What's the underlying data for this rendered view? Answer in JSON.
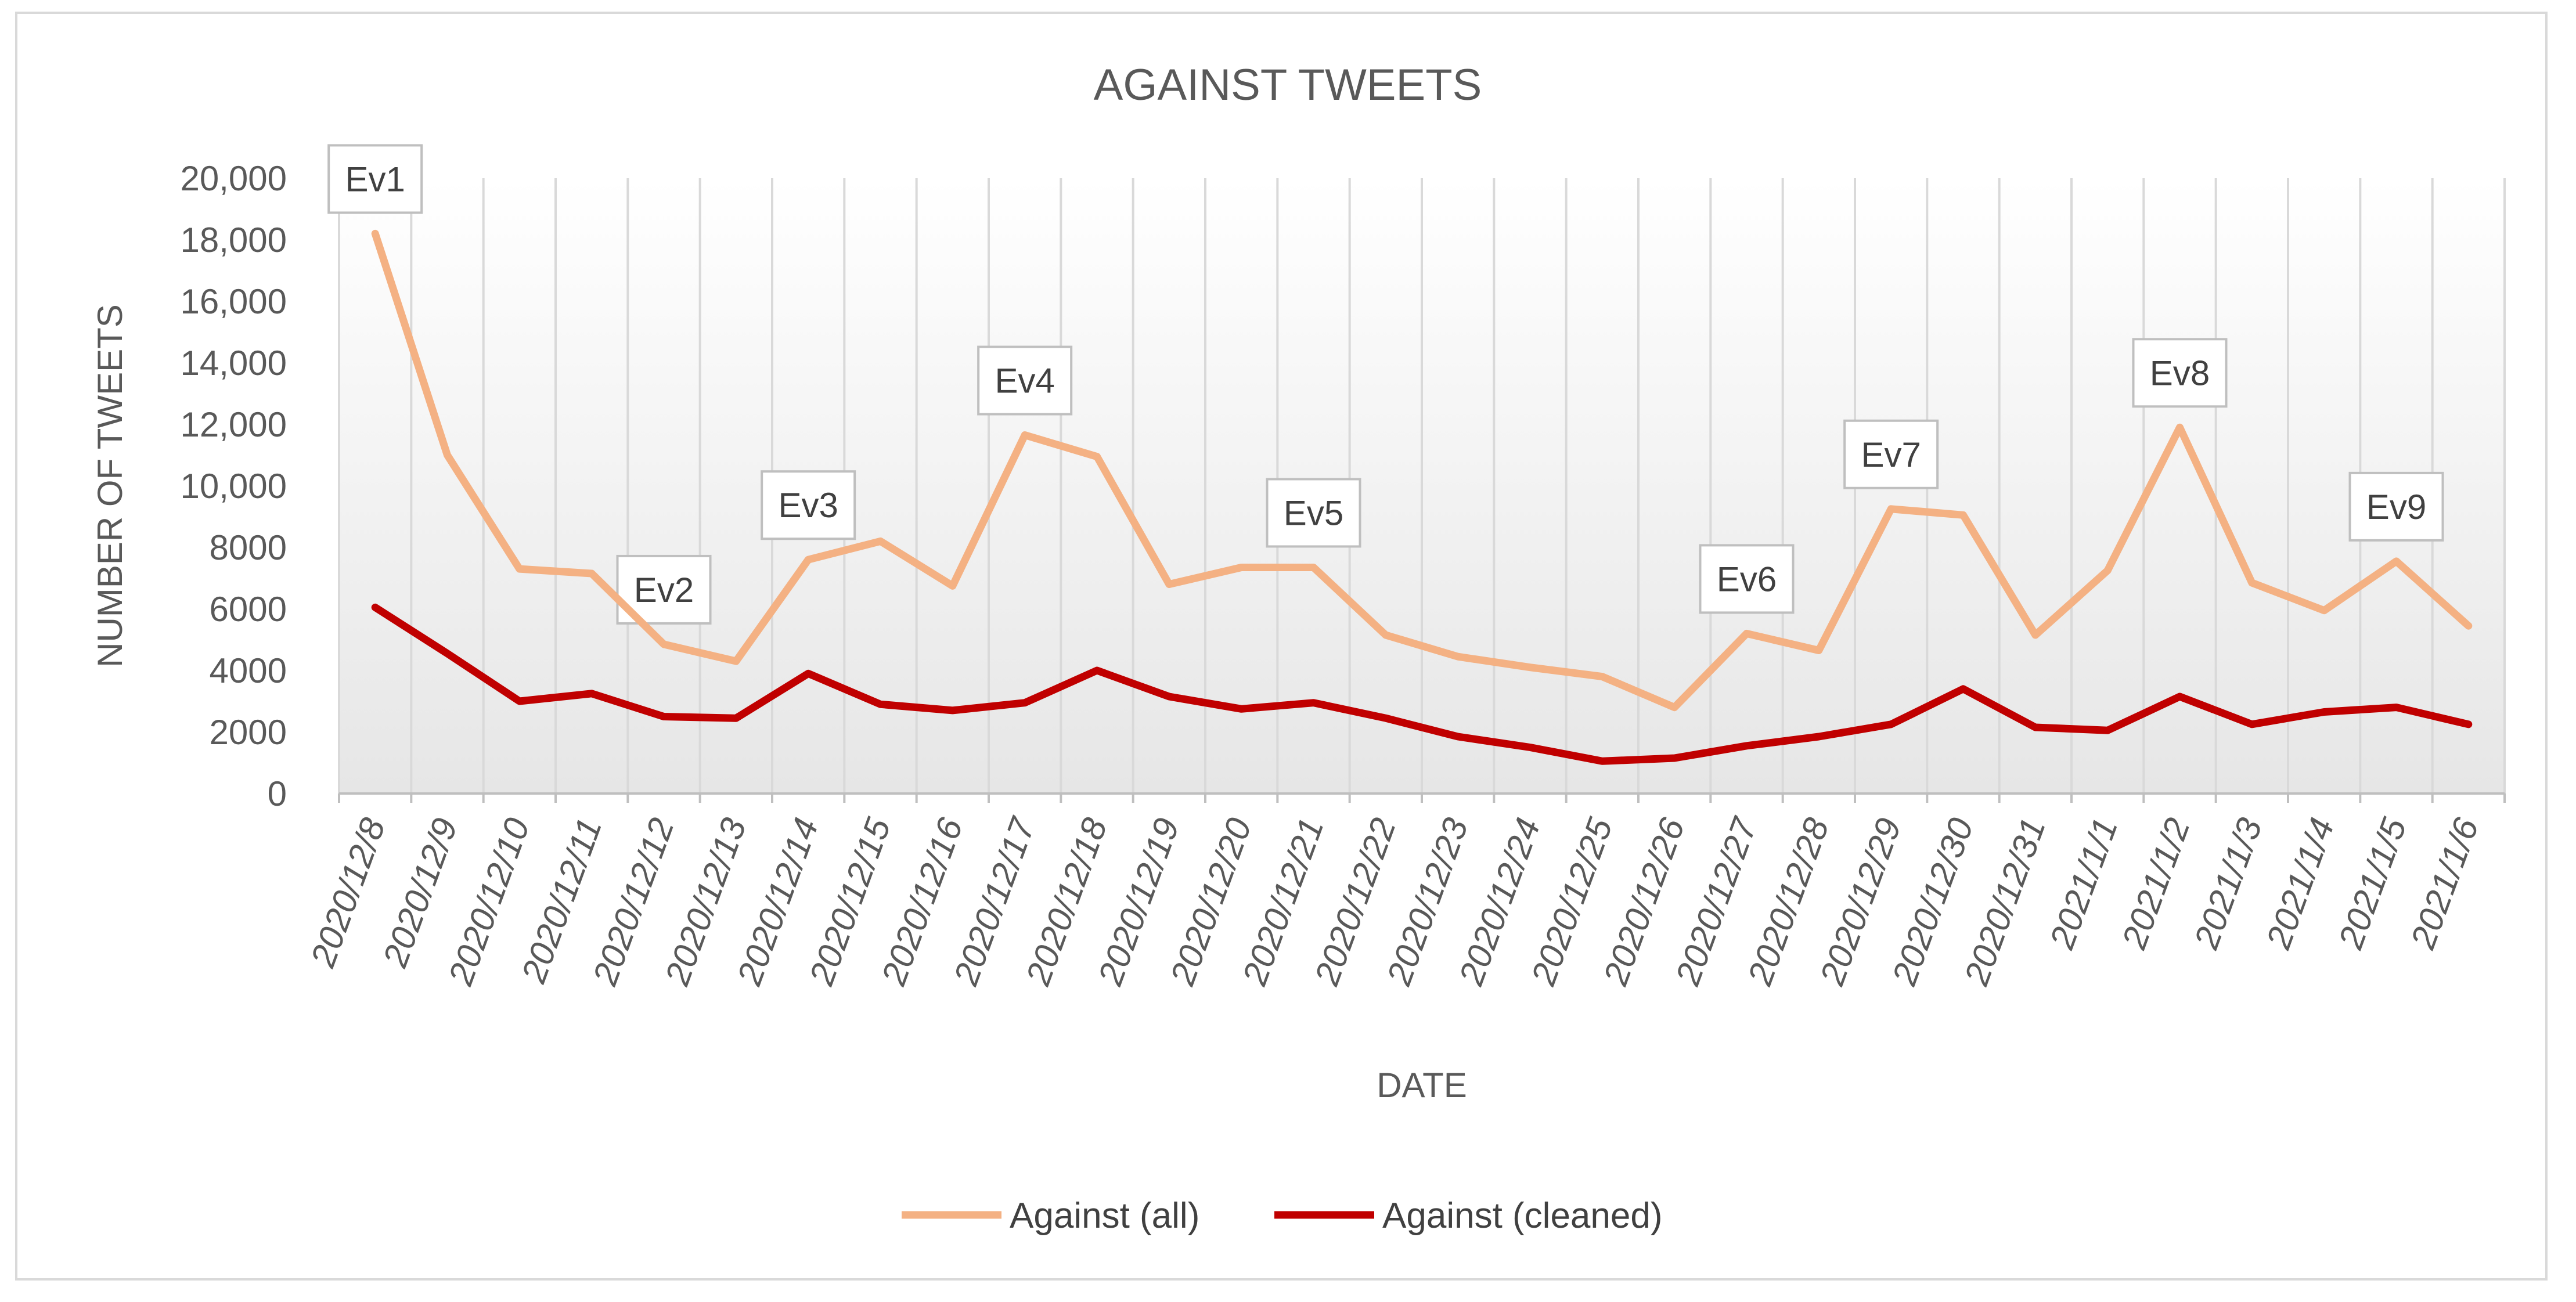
{
  "chart_data": {
    "type": "line",
    "title": "AGAINST TWEETS",
    "xlabel": "DATE",
    "ylabel": "NUMBER OF TWEETS",
    "ylim": [
      0,
      20000
    ],
    "yticks": [
      {
        "value": 0,
        "label": "0"
      },
      {
        "value": 2000,
        "label": "2000"
      },
      {
        "value": 4000,
        "label": "4000"
      },
      {
        "value": 6000,
        "label": "6000"
      },
      {
        "value": 8000,
        "label": "8000"
      },
      {
        "value": 10000,
        "label": "10,000"
      },
      {
        "value": 12000,
        "label": "12,000"
      },
      {
        "value": 14000,
        "label": "14,000"
      },
      {
        "value": 16000,
        "label": "16,000"
      },
      {
        "value": 18000,
        "label": "18,000"
      },
      {
        "value": 20000,
        "label": "20,000"
      }
    ],
    "categories": [
      "2020/12/8",
      "2020/12/9",
      "2020/12/10",
      "2020/12/11",
      "2020/12/12",
      "2020/12/13",
      "2020/12/14",
      "2020/12/15",
      "2020/12/16",
      "2020/12/17",
      "2020/12/18",
      "2020/12/19",
      "2020/12/20",
      "2020/12/21",
      "2020/12/22",
      "2020/12/23",
      "2020/12/24",
      "2020/12/25",
      "2020/12/26",
      "2020/12/27",
      "2020/12/28",
      "2020/12/29",
      "2020/12/30",
      "2020/12/31",
      "2021/1/1",
      "2021/1/2",
      "2021/1/3",
      "2021/1/4",
      "2021/1/5",
      "2021/1/6"
    ],
    "series": [
      {
        "name": "Against (all)",
        "color": "#f4b183",
        "values": [
          18200,
          11000,
          7300,
          7150,
          4850,
          4300,
          7600,
          8200,
          6750,
          11650,
          10950,
          6800,
          7350,
          7350,
          5150,
          4450,
          4100,
          3800,
          2800,
          5200,
          4650,
          9250,
          9050,
          5150,
          7250,
          11900,
          6850,
          5950,
          7550,
          5450
        ]
      },
      {
        "name": "Against (cleaned)",
        "color": "#c00000",
        "values": [
          6050,
          4550,
          3000,
          3250,
          2500,
          2450,
          3900,
          2900,
          2700,
          2950,
          4000,
          3150,
          2750,
          2950,
          2450,
          1850,
          1500,
          1050,
          1150,
          1550,
          1850,
          2250,
          3400,
          2150,
          2050,
          3150,
          2250,
          2650,
          2800,
          2250
        ]
      }
    ],
    "annotations": [
      {
        "label": "Ev1",
        "index": 0,
        "value": 18200
      },
      {
        "label": "Ev2",
        "index": 4,
        "value": 4850
      },
      {
        "label": "Ev3",
        "index": 6,
        "value": 7600
      },
      {
        "label": "Ev4",
        "index": 9,
        "value": 11650
      },
      {
        "label": "Ev5",
        "index": 13,
        "value": 7350
      },
      {
        "label": "Ev6",
        "index": 19,
        "value": 5200
      },
      {
        "label": "Ev7",
        "index": 21,
        "value": 9250
      },
      {
        "label": "Ev8",
        "index": 25,
        "value": 11900
      },
      {
        "label": "Ev9",
        "index": 28,
        "value": 7550
      }
    ],
    "grid": "vertical",
    "legend": "bottom"
  }
}
